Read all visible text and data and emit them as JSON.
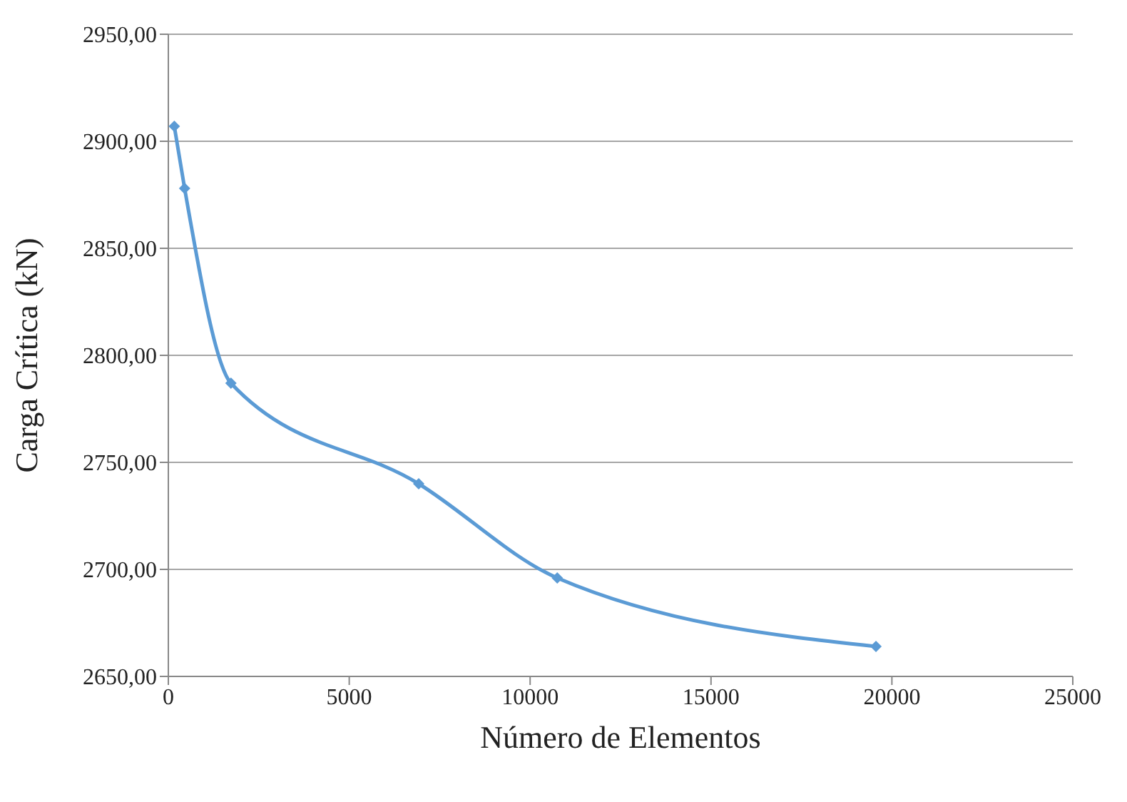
{
  "chart_data": {
    "type": "line",
    "xlabel": "Número de Elementos",
    "ylabel": "Carga Crítica (kN)",
    "x": [
      165,
      450,
      1730,
      6920,
      10750,
      19560
    ],
    "series": [
      {
        "color": "#5b9bd5",
        "values": [
          2907,
          2878,
          2787,
          2740,
          2696,
          2664
        ]
      }
    ],
    "xlim": [
      0,
      25000
    ],
    "xticks": [
      0,
      5000,
      10000,
      15000,
      20000,
      25000
    ],
    "ylim": [
      2650,
      2950
    ],
    "yticks": [
      {
        "value": 2650,
        "label": "2650,00"
      },
      {
        "value": 2700,
        "label": "2700,00"
      },
      {
        "value": 2750,
        "label": "2750,00"
      },
      {
        "value": 2800,
        "label": "2800,00"
      },
      {
        "value": 2850,
        "label": "2850,00"
      },
      {
        "value": 2900,
        "label": "2900,00"
      },
      {
        "value": 2950,
        "label": "2950,00"
      }
    ],
    "grid": "y",
    "marker": "diamond",
    "line_style": "solid",
    "legend": false
  }
}
